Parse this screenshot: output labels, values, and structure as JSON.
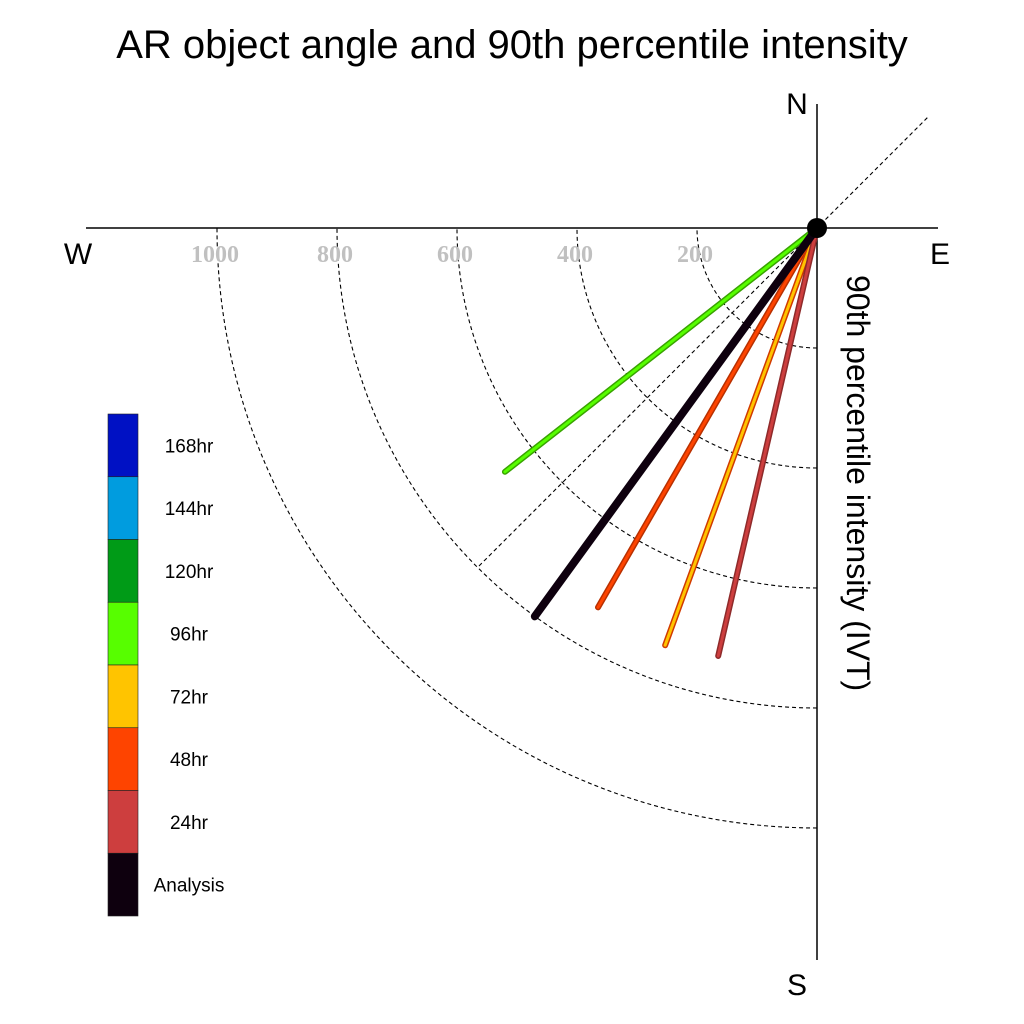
{
  "chart_data": {
    "type": "polar-line",
    "title": "AR object angle and 90th percentile intensity",
    "ylabel": "90th percentile intensity (IVT)",
    "compass": {
      "north": "N",
      "south": "S",
      "east": "E",
      "west": "W"
    },
    "radial_ticks": [
      200,
      400,
      600,
      800,
      1000
    ],
    "radial_tick_labels": [
      "200",
      "400",
      "600",
      "800",
      "1000"
    ],
    "rlim": [
      0,
      1000
    ],
    "angle_convention": "degrees clockwise from north",
    "grid": true,
    "legend_position": "left",
    "legend": [
      {
        "label": "168hr",
        "color": "#0011c4"
      },
      {
        "label": "144hr",
        "color": "#009cdf"
      },
      {
        "label": "120hr",
        "color": "#009b17"
      },
      {
        "label": "96hr",
        "color": "#57fe00"
      },
      {
        "label": "72hr",
        "color": "#ffc400"
      },
      {
        "label": "48hr",
        "color": "#fe4400"
      },
      {
        "label": "24hr",
        "color": "#cd3e3e"
      },
      {
        "label": "Analysis",
        "color": "#0e000e"
      }
    ],
    "series": [
      {
        "name": "96hr",
        "angle": 232,
        "value": 660,
        "color": "#57fe00",
        "edge": "#38a300"
      },
      {
        "name": "48hr",
        "angle": 210,
        "value": 730,
        "color": "#fe4400",
        "edge": "#b83000"
      },
      {
        "name": "72hr",
        "angle": 200,
        "value": 740,
        "color": "#ffc400",
        "edge": "#d03a00"
      },
      {
        "name": "24hr",
        "angle": 193,
        "value": 732,
        "color": "#cd3e3e",
        "edge": "#8e2a2a"
      },
      {
        "name": "Analysis",
        "angle": 216,
        "value": 800,
        "color": "#0e000e",
        "edge": "#0e000e"
      }
    ]
  }
}
